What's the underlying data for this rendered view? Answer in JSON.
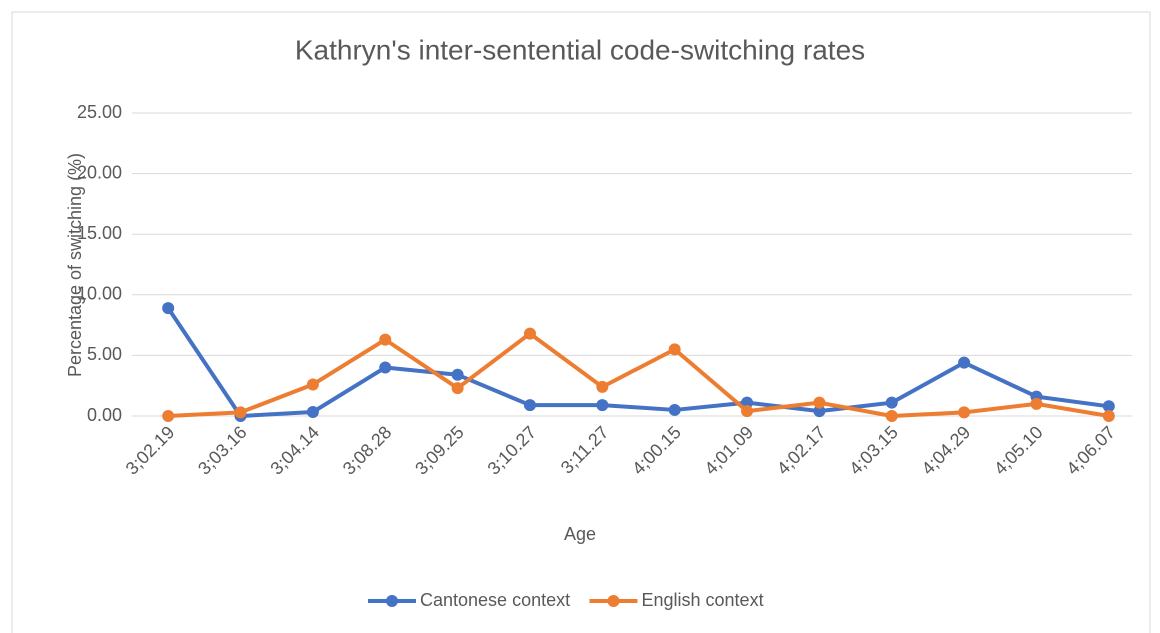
{
  "chart_data": {
    "type": "line",
    "title": "Kathryn's inter-sentential code-switching rates",
    "x_label": "Age",
    "y_label": "Percentage of switching (%)",
    "categories": [
      "3;02.19",
      "3;03.16",
      "3;04.14",
      "3;08.28",
      "3;09.25",
      "3;10.27",
      "3;11.27",
      "4;00.15",
      "4;01.09",
      "4;02.17",
      "4;03.15",
      "4;04.29",
      "4;05.10",
      "4;06.07"
    ],
    "series": [
      {
        "name": "Cantonese context",
        "color": "#4472c4",
        "values": [
          8.9,
          0,
          0.33,
          4.0,
          3.4,
          0.9,
          0.9,
          0.5,
          1.1,
          0.4,
          1.1,
          4.4,
          1.6,
          0.8
        ]
      },
      {
        "name": "English context",
        "color": "#ed7d31",
        "values": [
          0,
          0.3,
          2.6,
          6.3,
          2.3,
          6.8,
          2.4,
          5.5,
          0.4,
          1.1,
          0,
          0.3,
          1.0,
          0
        ]
      }
    ],
    "ylim": [
      0,
      25
    ],
    "yticks": [
      {
        "value": 0,
        "label": "0.00"
      },
      {
        "value": 5,
        "label": "5.00"
      },
      {
        "value": 10,
        "label": "10.00"
      },
      {
        "value": 15,
        "label": "15.00"
      },
      {
        "value": 20,
        "label": "20.00"
      },
      {
        "value": 25,
        "label": "25.00"
      }
    ],
    "grid": true,
    "legend": "bottom"
  }
}
